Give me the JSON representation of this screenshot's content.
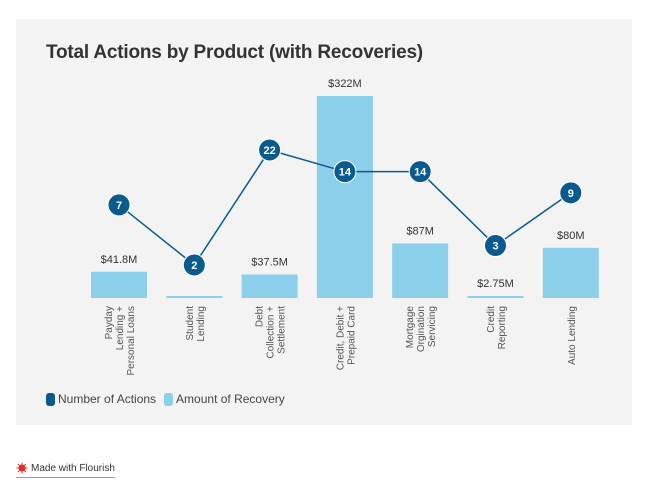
{
  "title": "Total Actions by Product (with Recoveries)",
  "legend": [
    {
      "label": "Number of Actions",
      "color": "#0b5a8e"
    },
    {
      "label": "Amount of Recovery",
      "color": "#8ccfea"
    }
  ],
  "footer": {
    "label": "Made with Flourish",
    "icon": "flourish-logo-icon"
  },
  "chart_data": {
    "type": "bar+line",
    "title": "Total Actions by Product (with Recoveries)",
    "categories": [
      [
        "Payday",
        "Lending +",
        "Personal Loans"
      ],
      [
        "Student",
        "Lending"
      ],
      [
        "Debt",
        "Collection +",
        "Settlement"
      ],
      [
        "Credit, Debit +",
        "Prepaid Card"
      ],
      [
        "Mortgage",
        "Orgination",
        "Servicing"
      ],
      [
        "Credit",
        "Reporting"
      ],
      [
        "Auto Lending"
      ]
    ],
    "series": [
      {
        "name": "Amount of Recovery",
        "type": "bar",
        "unit": "$M",
        "values": [
          41.8,
          2.0,
          37.5,
          322,
          87,
          2.75,
          80
        ],
        "labels": [
          "$41.8M",
          "",
          "$37.5M",
          "$322M",
          "$87M",
          "$2.75M",
          "$80M"
        ],
        "color": "#8ccfea",
        "ylim": [
          0,
          322
        ]
      },
      {
        "name": "Number of Actions",
        "type": "line",
        "scale": "log",
        "values": [
          7,
          2,
          22,
          14,
          14,
          3,
          9
        ],
        "labels": [
          "7",
          "2",
          "22",
          "14",
          "14",
          "3",
          "9"
        ],
        "color": "#0b5a8e"
      }
    ],
    "xlabel": "",
    "ylabel": "",
    "grid": false,
    "legend_position": "bottom-left"
  }
}
